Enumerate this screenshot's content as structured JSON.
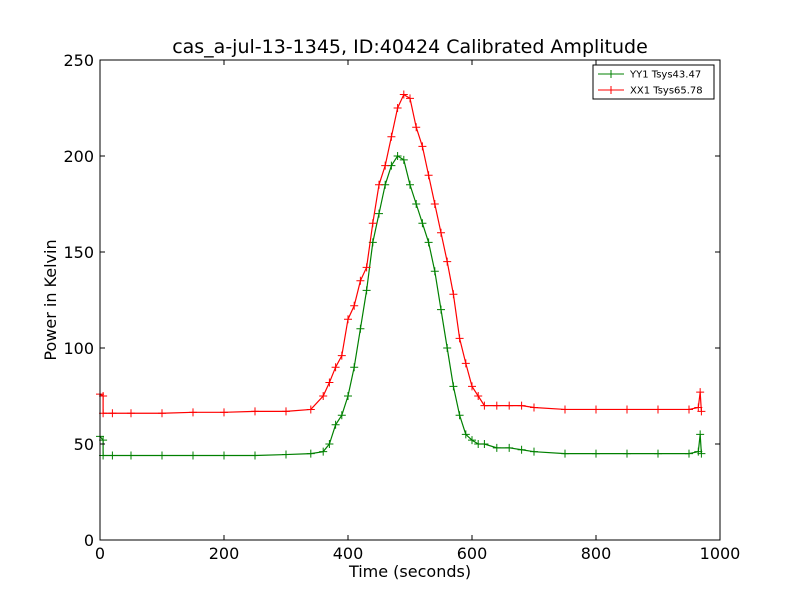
{
  "chart_data": {
    "type": "line",
    "title": "cas_a-jul-13-1345, ID:40424 Calibrated Amplitude",
    "xlabel": "Time (seconds)",
    "ylabel": "Power in Kelvin",
    "xlim": [
      0,
      1000
    ],
    "ylim": [
      0,
      250
    ],
    "xticks": [
      "0",
      "200",
      "400",
      "600",
      "800",
      "1000"
    ],
    "yticks": [
      "0",
      "50",
      "100",
      "150",
      "200",
      "250"
    ],
    "grid": false,
    "legend_position": "top-right",
    "marker": "plus",
    "series": [
      {
        "name": "YY1 Tsys43.47",
        "color": "#008000",
        "x": [
          0,
          5,
          5,
          20,
          50,
          100,
          150,
          200,
          250,
          300,
          340,
          360,
          370,
          380,
          390,
          400,
          410,
          420,
          430,
          440,
          450,
          460,
          470,
          480,
          490,
          500,
          510,
          520,
          530,
          540,
          550,
          560,
          570,
          580,
          590,
          600,
          610,
          620,
          640,
          660,
          680,
          700,
          750,
          800,
          850,
          900,
          950,
          965,
          968,
          970
        ],
        "y": [
          54,
          52,
          44,
          44,
          44,
          44,
          44,
          44,
          44,
          44.5,
          45,
          46,
          50,
          60,
          65,
          75,
          90,
          110,
          130,
          155,
          170,
          185,
          195,
          200,
          198,
          185,
          175,
          165,
          155,
          140,
          120,
          100,
          80,
          65,
          55,
          52,
          50,
          50,
          48,
          48,
          47,
          46,
          45,
          45,
          45,
          45,
          45,
          46,
          55,
          45
        ]
      },
      {
        "name": "XX1 Tsys65.78",
        "color": "#ff0000",
        "x": [
          0,
          5,
          5,
          20,
          50,
          100,
          150,
          200,
          250,
          300,
          340,
          360,
          370,
          380,
          390,
          400,
          410,
          420,
          430,
          440,
          450,
          460,
          470,
          480,
          490,
          500,
          510,
          520,
          530,
          540,
          550,
          560,
          570,
          580,
          590,
          600,
          610,
          620,
          640,
          660,
          680,
          700,
          750,
          800,
          850,
          900,
          950,
          965,
          968,
          970
        ],
        "y": [
          76,
          75,
          66,
          66,
          66,
          66,
          66.5,
          66.5,
          67,
          67,
          68,
          75,
          82,
          90,
          96,
          115,
          122,
          135,
          142,
          165,
          185,
          195,
          210,
          225,
          232,
          230,
          215,
          205,
          190,
          175,
          160,
          145,
          128,
          105,
          92,
          80,
          75,
          70,
          70,
          70,
          70,
          69,
          68,
          68,
          68,
          68,
          68,
          69,
          77,
          67
        ]
      }
    ]
  }
}
